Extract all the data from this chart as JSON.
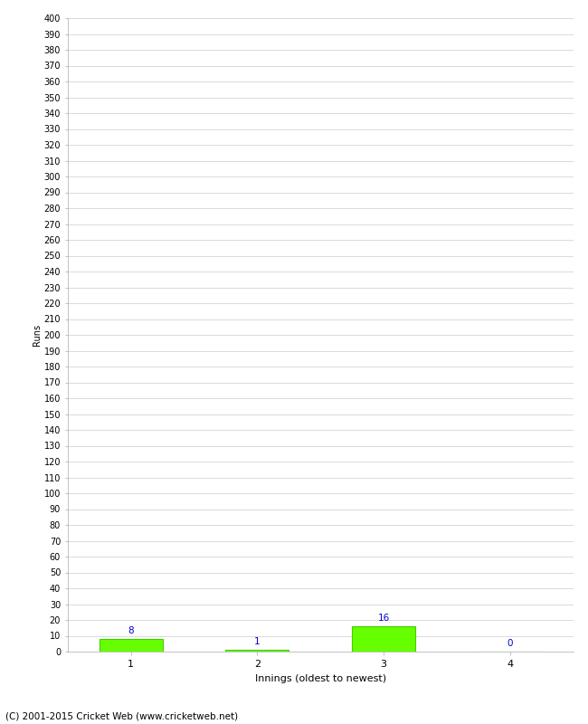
{
  "xlabel": "Innings (oldest to newest)",
  "ylabel": "Runs",
  "categories": [
    1,
    2,
    3,
    4
  ],
  "values": [
    8,
    1,
    16,
    0
  ],
  "bar_color": "#66ff00",
  "bar_edge_color": "#44cc00",
  "annotation_color": "#0000cc",
  "ylim": [
    0,
    400
  ],
  "background_color": "#ffffff",
  "grid_color": "#cccccc",
  "footer_text": "(C) 2001-2015 Cricket Web (www.cricketweb.net)",
  "annotation_fontsize": 7.5,
  "ytick_fontsize": 7,
  "xtick_fontsize": 8,
  "ylabel_fontsize": 7,
  "xlabel_fontsize": 8,
  "footer_fontsize": 7.5
}
